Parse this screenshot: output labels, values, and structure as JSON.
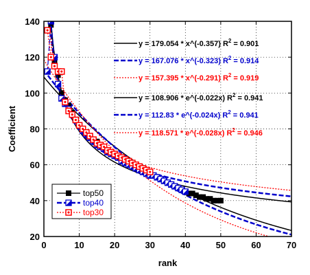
{
  "chart_data": {
    "type": "scatter",
    "xlabel": "rank",
    "ylabel": "Coefficient",
    "xlim": [
      0,
      70
    ],
    "ylim": [
      20,
      140
    ],
    "xticks": [
      0,
      10,
      20,
      30,
      40,
      50,
      60,
      70
    ],
    "yticks": [
      20,
      40,
      60,
      80,
      100,
      120,
      140
    ],
    "grid": true,
    "legend_position": "bottom-left",
    "series": [
      {
        "name": "top50",
        "color": "#000000",
        "marker": "square-filled",
        "x": [
          1,
          2,
          3,
          4,
          5,
          6,
          7,
          8,
          9,
          10,
          11,
          12,
          13,
          14,
          15,
          16,
          17,
          18,
          19,
          20,
          21,
          22,
          23,
          24,
          25,
          26,
          27,
          28,
          29,
          30,
          31,
          32,
          33,
          34,
          35,
          36,
          37,
          38,
          39,
          40,
          41,
          42,
          43,
          44,
          45,
          46,
          47,
          48,
          49,
          50
        ],
        "y": [
          150,
          138,
          118,
          110,
          100,
          96,
          93,
          89,
          85,
          82,
          80,
          78,
          76,
          74,
          73,
          71,
          69,
          68,
          67,
          66,
          65,
          63,
          62,
          61,
          60,
          59,
          58,
          57,
          56,
          55,
          54,
          53,
          52,
          51,
          50,
          49,
          48,
          47,
          46,
          45,
          44,
          44,
          43,
          42,
          42,
          41,
          41,
          40,
          40,
          40
        ]
      },
      {
        "name": "top40",
        "color": "#0000cc",
        "marker": "square-half",
        "x": [
          1,
          2,
          3,
          4,
          5,
          6,
          7,
          8,
          9,
          10,
          11,
          12,
          13,
          14,
          15,
          16,
          17,
          18,
          19,
          20,
          21,
          22,
          23,
          24,
          25,
          26,
          27,
          28,
          29,
          30,
          31,
          32,
          33,
          34,
          35,
          36,
          37,
          38,
          39,
          40
        ],
        "y": [
          112,
          140,
          120,
          105,
          97,
          94,
          91,
          88,
          85,
          82,
          79,
          77,
          75,
          73,
          71,
          70,
          69,
          67,
          66,
          65,
          64,
          62,
          61,
          60,
          59,
          58,
          57,
          56,
          55,
          54,
          54,
          53,
          52,
          51,
          50,
          49,
          48,
          47,
          46,
          45
        ]
      },
      {
        "name": "top30",
        "color": "#ff0000",
        "marker": "square-dot",
        "x": [
          1,
          2,
          3,
          4,
          5,
          6,
          7,
          8,
          9,
          10,
          11,
          12,
          13,
          14,
          15,
          16,
          17,
          18,
          19,
          20,
          21,
          22,
          23,
          24,
          25,
          26,
          27,
          28,
          29,
          30
        ],
        "y": [
          135,
          120,
          115,
          112,
          112,
          95,
          90,
          88,
          85,
          82,
          80,
          78,
          76,
          74,
          72,
          71,
          70,
          68,
          67,
          66,
          65,
          64,
          63,
          62,
          61,
          60,
          59,
          58,
          57,
          56
        ]
      }
    ],
    "fits": [
      {
        "label": "y = 179.054 * x^(-0.357)",
        "r2_label": "R",
        "r2_exp": "2",
        "r2_value": " = 0.901",
        "color": "#000000",
        "dash": "solid",
        "kind": "power",
        "a": 179.054,
        "b": -0.357
      },
      {
        "label": "y = 167.076 * x^(-0.323)",
        "r2_label": "R",
        "r2_exp": "2",
        "r2_value": " = 0.914",
        "color": "#0000cc",
        "dash": "dashed",
        "kind": "power",
        "a": 167.076,
        "b": -0.323
      },
      {
        "label": "y = 157.395 * x^(-0.291)",
        "r2_label": "R",
        "r2_exp": "2",
        "r2_value": " = 0.919",
        "color": "#ff0000",
        "dash": "dotted",
        "kind": "power",
        "a": 157.395,
        "b": -0.291
      },
      {
        "label": "y = 108.906 * e^(-0.022x)",
        "r2_label": "R",
        "r2_exp": "2",
        "r2_value": " = 0.941",
        "color": "#000000",
        "dash": "solid",
        "kind": "exp",
        "a": 108.906,
        "b": -0.022
      },
      {
        "label": "y = 112.83 * e^(-0.024x)",
        "r2_label": "R",
        "r2_exp": "2",
        "r2_value": " = 0.941",
        "color": "#0000cc",
        "dash": "dashed",
        "kind": "exp",
        "a": 112.83,
        "b": -0.024
      },
      {
        "label": "y = 118.571 * e^(-0.028x)",
        "r2_label": "R",
        "r2_exp": "2",
        "r2_value": " = 0.946",
        "color": "#ff0000",
        "dash": "dotted",
        "kind": "exp",
        "a": 118.571,
        "b": -0.028
      }
    ]
  }
}
